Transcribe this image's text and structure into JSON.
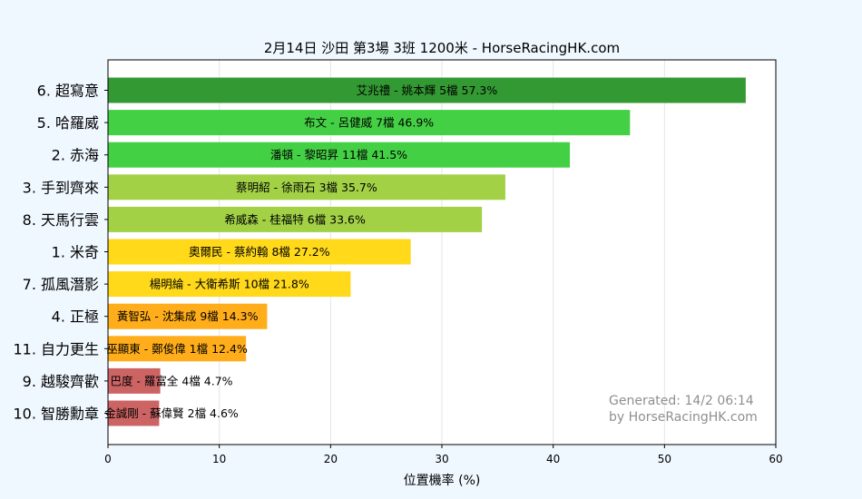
{
  "chart_data": {
    "type": "bar",
    "orientation": "horizontal",
    "title": "2月14日  沙田  第3場  3班  1200米 - HorseRacingHK.com",
    "xlabel": "位置機率 (%)",
    "xlim": [
      0,
      60
    ],
    "xticks": [
      "0",
      "10",
      "20",
      "30",
      "40",
      "50",
      "60"
    ],
    "grid": "vertical",
    "categories": [
      "6. 超寫意",
      "5. 哈羅威",
      "2. 赤海",
      "3. 手到齊來",
      "8. 天馬行雲",
      "1. 米奇",
      "7. 孤風潛影",
      "4. 正極",
      "11. 自力更生",
      "9. 越駿齊歡",
      "10. 智勝勳章"
    ],
    "values": [
      57.3,
      46.9,
      41.5,
      35.7,
      33.6,
      27.2,
      21.8,
      14.3,
      12.4,
      4.7,
      4.6
    ],
    "bar_labels": [
      "艾兆禮 - 姚本輝 5檔  57.3%",
      "布文 - 呂健威 7檔  46.9%",
      "潘頓 - 黎昭昇 11檔  41.5%",
      "蔡明紹 - 徐雨石 3檔  35.7%",
      "希威森 - 桂福特 6檔  33.6%",
      "奧爾民 - 蔡約翰 8檔  27.2%",
      "楊明綸 - 大衛希斯 10檔  21.8%",
      "黃智弘 - 沈集成 9檔  14.3%",
      "巫顯東 - 鄭俊偉 1檔  12.4%",
      "巴度 - 羅富全 4檔  4.7%",
      "金誠剛 - 蘇偉賢 2檔  4.6%"
    ],
    "colors": [
      "#339933",
      "#44d044",
      "#44d044",
      "#a2d146",
      "#a2d146",
      "#ffd91a",
      "#ffd91a",
      "#ffad1a",
      "#ffad1a",
      "#cd6464",
      "#cd6464"
    ],
    "watermark": [
      "Generated: 14/2 06:14",
      "by HorseRacingHK.com"
    ]
  }
}
